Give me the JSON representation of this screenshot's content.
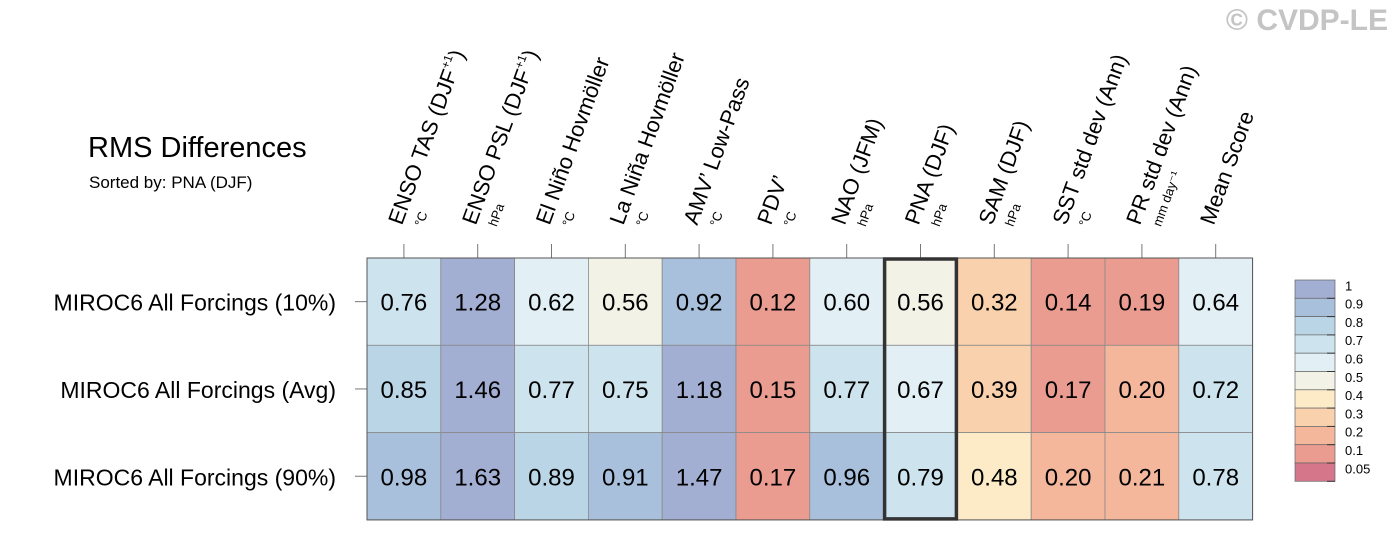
{
  "watermark": "© CVDP-LE",
  "chart_data": {
    "type": "heatmap",
    "title": "RMS Differences",
    "subtitle": "Sorted by: PNA (DJF)",
    "columns": [
      {
        "label": "ENSO TAS (DJF",
        "sup": "+1",
        "tail": ")",
        "unit": "°C"
      },
      {
        "label": "ENSO PSL (DJF",
        "sup": "+1",
        "tail": ")",
        "unit": "hPa"
      },
      {
        "label": "El Niño Hovmöller",
        "sup": "",
        "tail": "",
        "unit": "°C"
      },
      {
        "label": "La Niña Hovmöller",
        "sup": "",
        "tail": "",
        "unit": "°C"
      },
      {
        "label": "AMV’ Low-Pass",
        "sup": "",
        "tail": "",
        "unit": "°C"
      },
      {
        "label": "PDV’",
        "sup": "",
        "tail": "",
        "unit": "°C"
      },
      {
        "label": "NAO (JFM)",
        "sup": "",
        "tail": "",
        "unit": "hPa"
      },
      {
        "label": "PNA (DJF)",
        "sup": "",
        "tail": "",
        "unit": "hPa"
      },
      {
        "label": "SAM (DJF)",
        "sup": "",
        "tail": "",
        "unit": "hPa"
      },
      {
        "label": "SST std dev (Ann)",
        "sup": "",
        "tail": "",
        "unit": "°C"
      },
      {
        "label": "PR std dev (Ann)",
        "sup": "",
        "tail": "",
        "unit": "mm day⁻¹"
      },
      {
        "label": "Mean Score",
        "sup": "",
        "tail": "",
        "unit": ""
      }
    ],
    "rows": [
      "MIROC6 All Forcings (10%)",
      "MIROC6 All Forcings (Avg)",
      "MIROC6 All Forcings (90%)"
    ],
    "values": [
      [
        0.76,
        1.28,
        0.62,
        0.56,
        0.92,
        0.12,
        0.6,
        0.56,
        0.32,
        0.14,
        0.19,
        0.64
      ],
      [
        0.85,
        1.46,
        0.77,
        0.75,
        1.18,
        0.15,
        0.77,
        0.67,
        0.39,
        0.17,
        0.2,
        0.72
      ],
      [
        0.98,
        1.63,
        0.89,
        0.91,
        1.47,
        0.17,
        0.96,
        0.79,
        0.48,
        0.2,
        0.21,
        0.78
      ]
    ],
    "highlight_column": "PNA (DJF)",
    "colorbar": {
      "labels": [
        "1",
        "0.9",
        "0.8",
        "0.7",
        "0.6",
        "0.5",
        "0.4",
        "0.3",
        "0.2",
        "0.1",
        "0.05"
      ],
      "colors": [
        "#a2aed2",
        "#a8c0dc",
        "#b9d5e6",
        "#cde4ee",
        "#e2eff5",
        "#f2f2e6",
        "#fcebc6",
        "#f9d1ad",
        "#f4b79c",
        "#eb9c90",
        "#d6768a"
      ]
    }
  }
}
